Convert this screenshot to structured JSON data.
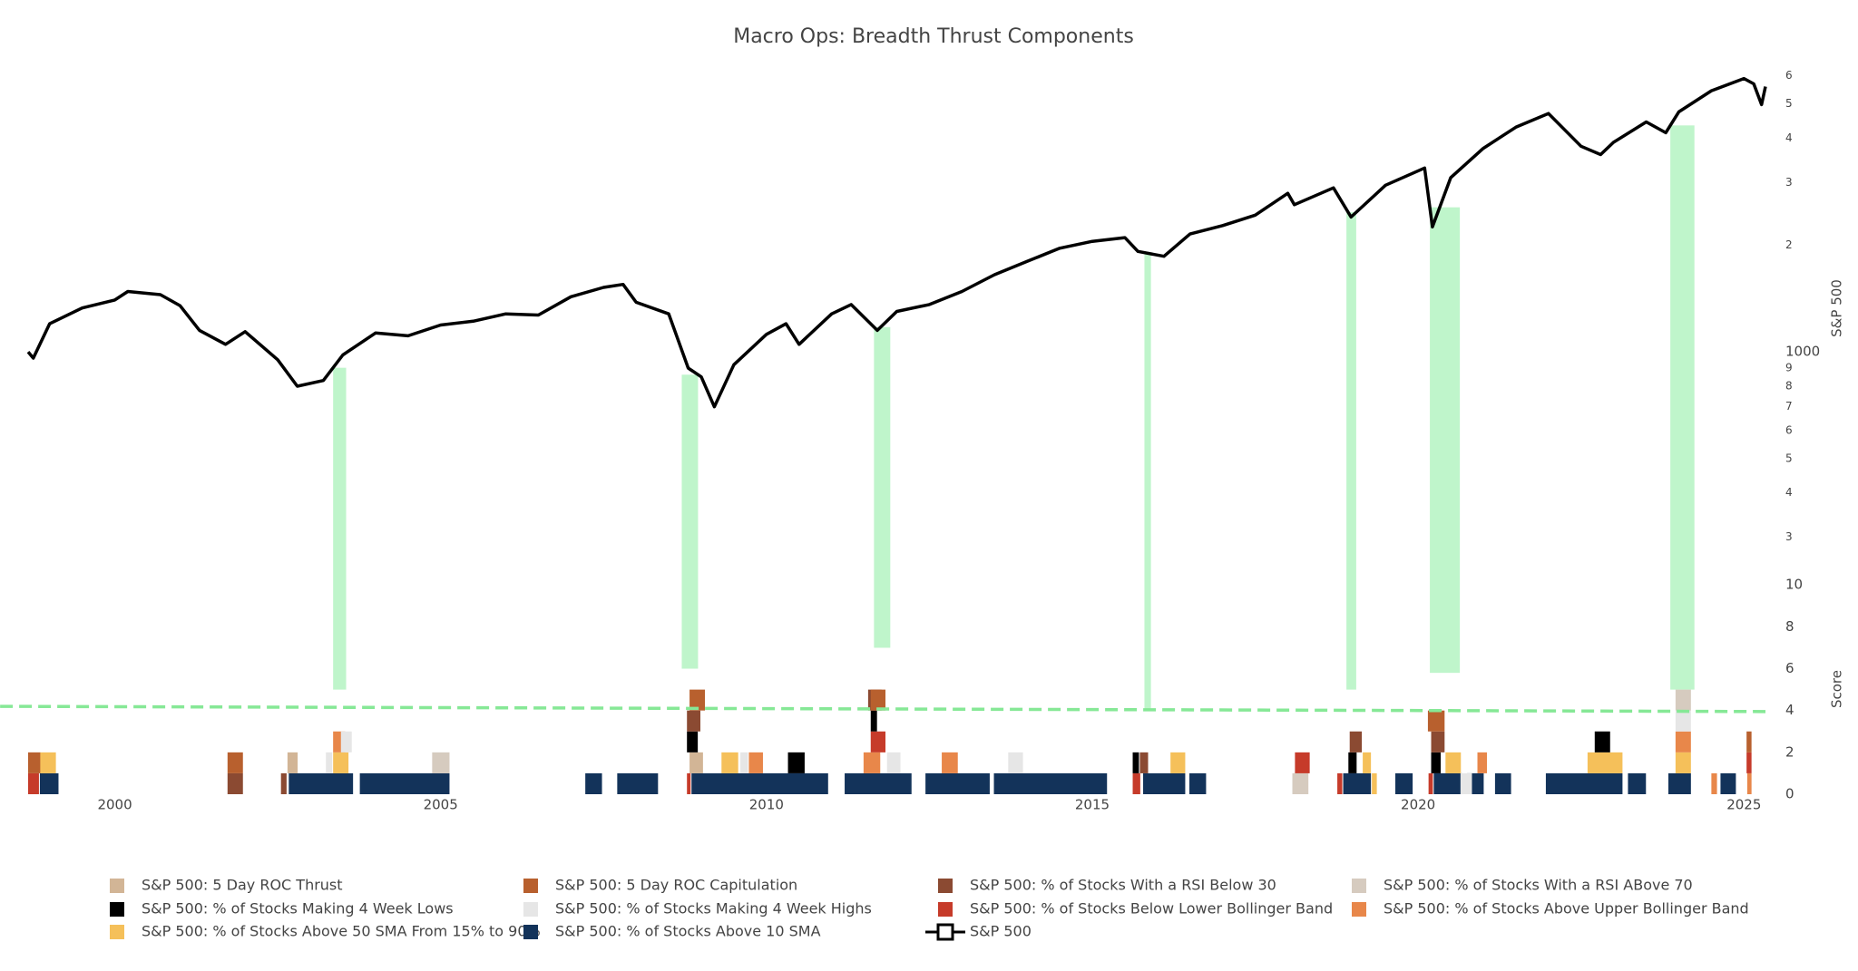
{
  "chart_data": {
    "type": "breadth",
    "title": "Macro Ops: Breadth Thrust Components",
    "xlim": [
      1998.67,
      2025.33
    ],
    "xticks": [
      2000,
      2005,
      2010,
      2015,
      2020,
      2025
    ],
    "ylim": [
      245,
      6700
    ],
    "log_y": true,
    "ylabel": "S&P 500",
    "yticks": [
      {
        "value": 6000,
        "label": "6"
      },
      {
        "value": 5000,
        "label": "5"
      },
      {
        "value": 4000,
        "label": "4"
      },
      {
        "value": 3000,
        "label": "3"
      },
      {
        "value": 2000,
        "label": "2"
      },
      1000,
      {
        "value": 900,
        "label": "9"
      },
      {
        "value": 800,
        "label": "8"
      },
      {
        "value": 700,
        "label": "7"
      },
      {
        "value": 600,
        "label": "6"
      },
      {
        "value": 500,
        "label": "5"
      },
      {
        "value": 400,
        "label": "4"
      },
      {
        "value": 300,
        "label": "3"
      }
    ],
    "y2lim": [
      0,
      10.4
    ],
    "y2label": "Score",
    "y2ticks": [
      0,
      2,
      4,
      6,
      8,
      10
    ],
    "line": {
      "name": "S&P 500",
      "color": "#000000",
      "x": [
        1998.67,
        1998.75,
        1999.0,
        1999.5,
        2000.0,
        2000.2,
        2000.7,
        2001.0,
        2001.3,
        2001.7,
        2002.0,
        2002.5,
        2002.8,
        2003.2,
        2003.5,
        2004.0,
        2004.5,
        2005.0,
        2005.5,
        2006.0,
        2006.5,
        2007.0,
        2007.5,
        2007.8,
        2008.0,
        2008.5,
        2008.8,
        2009.0,
        2009.2,
        2009.5,
        2010.0,
        2010.3,
        2010.5,
        2011.0,
        2011.3,
        2011.7,
        2012.0,
        2012.5,
        2013.0,
        2013.5,
        2014.0,
        2014.5,
        2015.0,
        2015.5,
        2015.7,
        2016.1,
        2016.5,
        2017.0,
        2017.5,
        2018.0,
        2018.1,
        2018.7,
        2018.97,
        2019.5,
        2020.1,
        2020.22,
        2020.5,
        2021.0,
        2021.5,
        2022.0,
        2022.5,
        2022.8,
        2023.0,
        2023.5,
        2023.8,
        2024.0,
        2024.5,
        2025.0,
        2025.15,
        2025.27,
        2025.33
      ],
      "values": [
        1000,
        960,
        1200,
        1330,
        1400,
        1480,
        1450,
        1350,
        1150,
        1050,
        1140,
        950,
        800,
        830,
        980,
        1130,
        1110,
        1190,
        1220,
        1280,
        1270,
        1430,
        1520,
        1550,
        1380,
        1280,
        900,
        850,
        700,
        920,
        1120,
        1200,
        1050,
        1280,
        1360,
        1150,
        1300,
        1360,
        1480,
        1650,
        1800,
        1960,
        2050,
        2100,
        1920,
        1860,
        2150,
        2270,
        2430,
        2800,
        2600,
        2900,
        2400,
        2950,
        3300,
        2250,
        3100,
        3750,
        4300,
        4700,
        3800,
        3600,
        3900,
        4450,
        4150,
        4750,
        5450,
        5900,
        5700,
        4980,
        5600
      ]
    },
    "signals": [
      {
        "x0": 2003.35,
        "x1": 2003.55,
        "score_floor": 5
      },
      {
        "x0": 2008.7,
        "x1": 2008.95,
        "score_floor": 6
      },
      {
        "x0": 2011.65,
        "x1": 2011.9,
        "score_floor": 7
      },
      {
        "x0": 2015.8,
        "x1": 2015.9,
        "score_floor": 4
      },
      {
        "x0": 2018.9,
        "x1": 2019.05,
        "score_floor": 5
      },
      {
        "x0": 2020.18,
        "x1": 2020.64,
        "score_floor": 5.8
      },
      {
        "x0": 2023.87,
        "x1": 2024.24,
        "score_floor": 5
      }
    ],
    "signal_color": "#bff5cb",
    "threshold": {
      "x": [
        1998.24,
        2025.33
      ],
      "y": [
        4.2,
        3.95
      ],
      "color": "#86e896"
    },
    "series": [
      {
        "name": "S&P 500: 5 Day ROC Thrust",
        "color": "#d2b596",
        "intervals": [
          [
            2002.65,
            2002.82
          ],
          [
            2008.82,
            2009.04
          ]
        ]
      },
      {
        "name": "S&P 500: 5 Day ROC Capitulation",
        "color": "#b8602e",
        "intervals": [
          [
            1998.67,
            1998.87
          ],
          [
            2001.73,
            2001.98
          ],
          [
            2008.82,
            2009.07
          ],
          [
            2011.6,
            2011.84
          ],
          [
            2020.15,
            2020.42
          ],
          [
            2025.04,
            2025.13
          ]
        ]
      },
      {
        "name": "S&P 500: % of Stocks With a RSI Below 30",
        "color": "#8b4a32",
        "intervals": [
          [
            2001.73,
            2001.98
          ],
          [
            2002.55,
            2002.65
          ],
          [
            2008.78,
            2009.0
          ],
          [
            2011.56,
            2011.78
          ],
          [
            2015.73,
            2015.87
          ],
          [
            2018.95,
            2019.15
          ],
          [
            2020.2,
            2020.42
          ]
        ]
      },
      {
        "name": "S&P 500: % of Stocks With a RSI ABove 70",
        "color": "#d6cbbf",
        "intervals": [
          [
            2004.87,
            2005.15
          ],
          [
            2018.07,
            2018.33
          ],
          [
            2023.95,
            2024.2
          ]
        ]
      },
      {
        "name": "S&P 500: % of Stocks Making 4 Week Lows",
        "color": "#000000",
        "intervals": [
          [
            2008.78,
            2008.96
          ],
          [
            2010.33,
            2010.6
          ],
          [
            2011.6,
            2011.71
          ],
          [
            2015.62,
            2015.73
          ],
          [
            2018.93,
            2019.07
          ],
          [
            2020.2,
            2020.36
          ],
          [
            2022.71,
            2022.96
          ]
        ]
      },
      {
        "name": "S&P 500: % of Stocks Making 4 Week Highs",
        "color": "#e6e6e6",
        "intervals": [
          [
            2003.24,
            2003.35
          ],
          [
            2003.47,
            2003.65
          ],
          [
            2009.6,
            2009.73
          ],
          [
            2011.85,
            2012.07
          ],
          [
            2013.71,
            2013.95
          ],
          [
            2020.65,
            2020.84
          ],
          [
            2023.95,
            2024.2
          ]
        ]
      },
      {
        "name": "S&P 500: % of Stocks Below Lower Bollinger Band",
        "color": "#c63b2a",
        "intervals": [
          [
            1998.67,
            1998.85
          ],
          [
            2008.78,
            2008.85
          ],
          [
            2011.6,
            2011.84
          ],
          [
            2015.62,
            2015.75
          ],
          [
            2018.11,
            2018.35
          ],
          [
            2018.76,
            2018.85
          ],
          [
            2020.16,
            2020.24
          ],
          [
            2025.04,
            2025.13
          ]
        ]
      },
      {
        "name": "S&P 500: % of Stocks Above Upper Bollinger Band",
        "color": "#e8874a",
        "intervals": [
          [
            2003.35,
            2003.55
          ],
          [
            2009.73,
            2009.96
          ],
          [
            2011.49,
            2011.76
          ],
          [
            2012.69,
            2012.95
          ],
          [
            2020.91,
            2021.07
          ],
          [
            2023.95,
            2024.2
          ],
          [
            2024.5,
            2024.6
          ],
          [
            2025.05,
            2025.13
          ]
        ]
      },
      {
        "name": "S&P 500: % of Stocks Above 50 SMA From 15% to 90%",
        "color": "#f5c05a",
        "intervals": [
          [
            1998.85,
            1999.11
          ],
          [
            2003.35,
            2003.6
          ],
          [
            2009.31,
            2009.58
          ],
          [
            2016.2,
            2016.44
          ],
          [
            2019.15,
            2019.29
          ],
          [
            2019.29,
            2019.38
          ],
          [
            2020.42,
            2020.67
          ],
          [
            2022.6,
            2023.15
          ],
          [
            2023.95,
            2024.2
          ]
        ]
      },
      {
        "name": "S&P 500: % of Stocks Above 10 SMA",
        "color": "#13335a",
        "intervals": [
          [
            1998.85,
            1999.15
          ],
          [
            2002.67,
            2003.67
          ],
          [
            2003.76,
            2005.15
          ],
          [
            2007.22,
            2007.49
          ],
          [
            2007.71,
            2008.35
          ],
          [
            2008.85,
            2010.96
          ],
          [
            2011.2,
            2012.24
          ],
          [
            2012.44,
            2013.44
          ],
          [
            2013.49,
            2015.24
          ],
          [
            2015.78,
            2016.44
          ],
          [
            2016.49,
            2016.76
          ],
          [
            2018.85,
            2019.29
          ],
          [
            2019.65,
            2019.93
          ],
          [
            2020.24,
            2020.69
          ],
          [
            2020.75,
            2021.02
          ],
          [
            2021.18,
            2021.44
          ],
          [
            2021.96,
            2023.15
          ],
          [
            2023.22,
            2023.51
          ],
          [
            2023.84,
            2024.2
          ],
          [
            2024.64,
            2024.89
          ]
        ]
      }
    ]
  }
}
